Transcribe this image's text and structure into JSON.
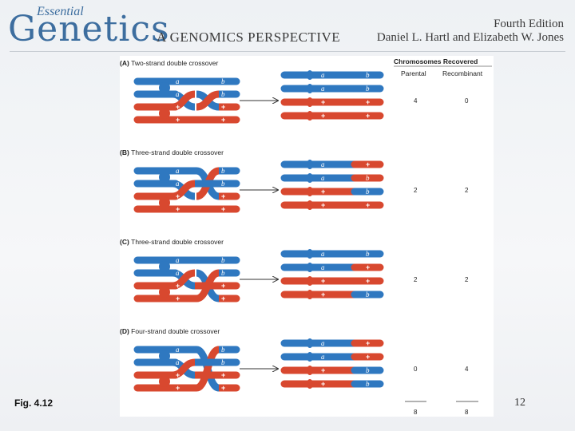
{
  "header": {
    "brand_small": "Essential",
    "brand_big": "Genetics",
    "brand_sub": "A GENOMICS PERSPECTIVE",
    "edition": "Fourth Edition",
    "authors": "Daniel L. Hartl and Elizabeth W. Jones"
  },
  "figure": {
    "column_title": "Chromosomes Recovered",
    "col_parental": "Parental",
    "col_recombinant": "Recombinant",
    "alleles": {
      "a": "a",
      "b": "b",
      "plus": "+"
    },
    "panels": [
      {
        "letter": "(A)",
        "title": "Two-strand double crossover",
        "parental": "4",
        "recombinant": "0"
      },
      {
        "letter": "(B)",
        "title": "Three-strand double crossover",
        "parental": "2",
        "recombinant": "2"
      },
      {
        "letter": "(C)",
        "title": "Three-strand double crossover",
        "parental": "2",
        "recombinant": "2"
      },
      {
        "letter": "(D)",
        "title": "Four-strand double crossover",
        "parental": "0",
        "recombinant": "4"
      }
    ],
    "totals": {
      "parental": "8",
      "recombinant": "8"
    },
    "colors": {
      "blue": "#2f78c0",
      "red": "#d8482f"
    }
  },
  "footer": {
    "fig_label": "Fig. 4.12",
    "page_number": "12"
  }
}
